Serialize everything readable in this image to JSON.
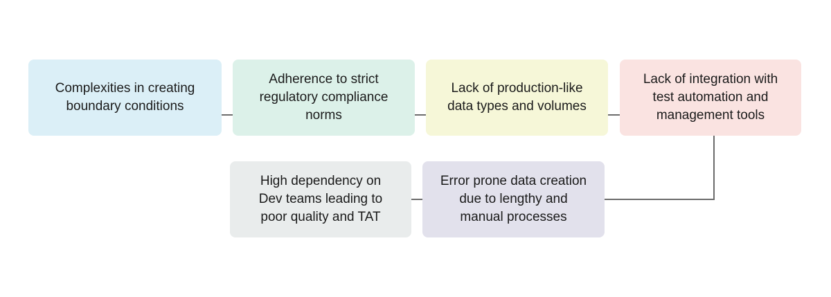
{
  "nodes": [
    {
      "text": "Complexities in creating boundary conditions",
      "color": "#dbeff7"
    },
    {
      "text": "Adherence to strict regulatory compliance norms",
      "color": "#dcf1e9"
    },
    {
      "text": "Lack of production-like data types and volumes",
      "color": "#f6f7d8"
    },
    {
      "text": "Lack of integration with test automation and management tools",
      "color": "#fae3e1"
    },
    {
      "text": "Error prone data creation due to lengthy and manual processes",
      "color": "#e2e1ec"
    },
    {
      "text": "High dependency on Dev teams leading to poor quality and TAT",
      "color": "#e9ecec"
    }
  ],
  "connector_color": "#6b6b6b"
}
